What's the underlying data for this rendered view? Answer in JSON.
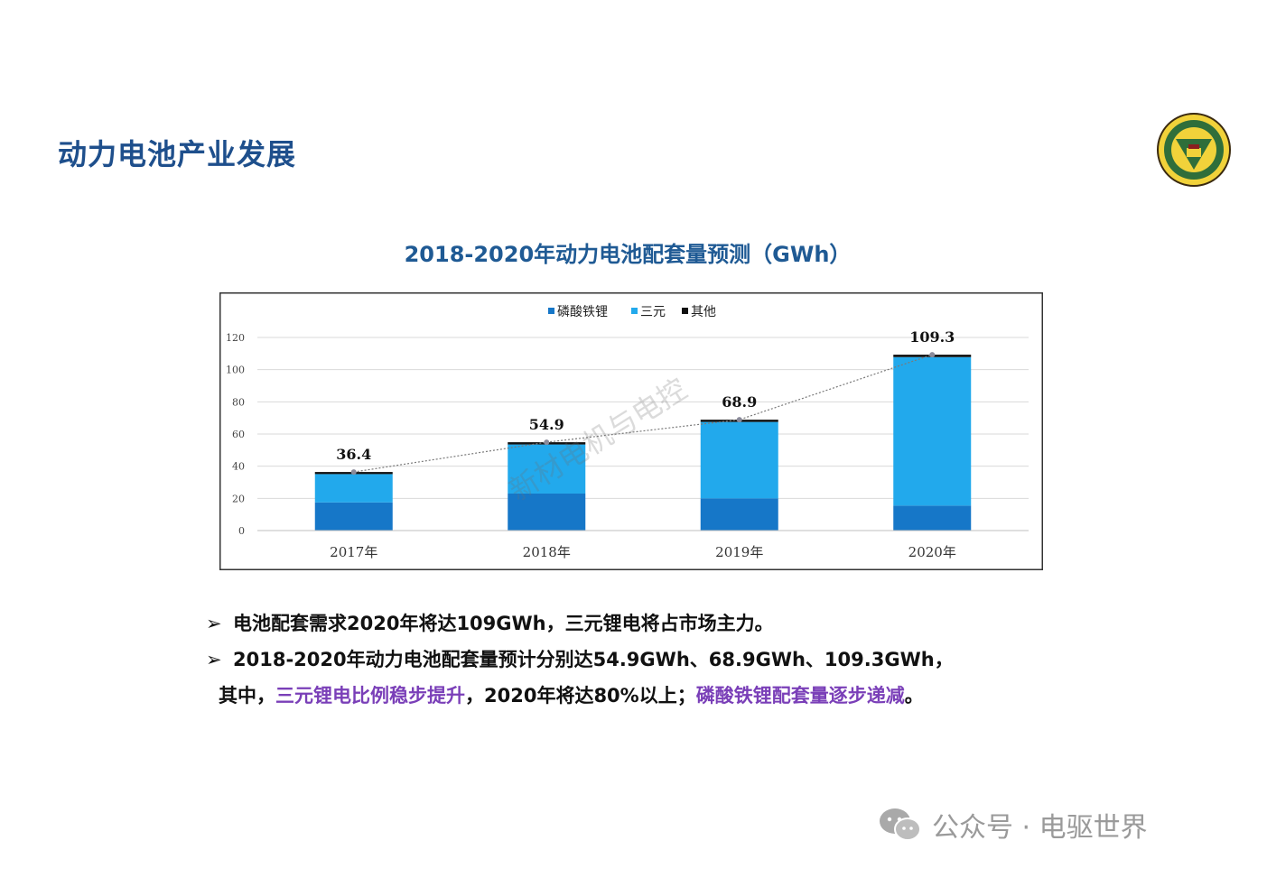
{
  "slide": {
    "title": "动力电池产业发展",
    "chart_title": "2018-2020年动力电池配套量预测（GWh）"
  },
  "colors": {
    "lfp": "#1677c8",
    "ternary": "#22a9ec",
    "other": "#111111",
    "title": "#1e4f8c",
    "highlight": "#7a3fb8"
  },
  "chart_data": {
    "type": "bar",
    "stacked": true,
    "categories": [
      "2017年",
      "2018年",
      "2019年",
      "2020年"
    ],
    "series": [
      {
        "name": "磷酸铁锂",
        "values": [
          17.5,
          23.0,
          20.0,
          15.5
        ]
      },
      {
        "name": "三元",
        "values": [
          17.6,
          30.5,
          47.5,
          92.3
        ]
      },
      {
        "name": "其他",
        "values": [
          1.3,
          1.4,
          1.4,
          1.5
        ]
      }
    ],
    "totals": [
      36.4,
      54.9,
      68.9,
      109.3
    ],
    "total_labels": [
      "36.4",
      "54.9",
      "68.9",
      "109.3"
    ],
    "yticks": [
      "0",
      "20",
      "40",
      "60",
      "80",
      "100",
      "120"
    ],
    "ylim": [
      0,
      120
    ],
    "grid": true,
    "trendline": "dotted through totals",
    "legend_position": "top-center"
  },
  "watermark_chart": "新材电机与电控",
  "bullets": {
    "arrow": "➢",
    "line1": "电池配套需求2020年将达109GWh，三元锂电将占市场主力。",
    "line2": "2018-2020年动力电池配套量预计分别达54.9GWh、68.9GWh、109.3GWh，",
    "line3_a": "其中，",
    "line3_b": "三元锂电比例稳步提升",
    "line3_c": "，2020年将达80%以上；",
    "line3_d": "磷酸铁锂配套量逐步递减",
    "line3_e": "。"
  },
  "footer_watermark": {
    "icon": "wechat-icon",
    "text": "公众号 · 电驱世界"
  }
}
